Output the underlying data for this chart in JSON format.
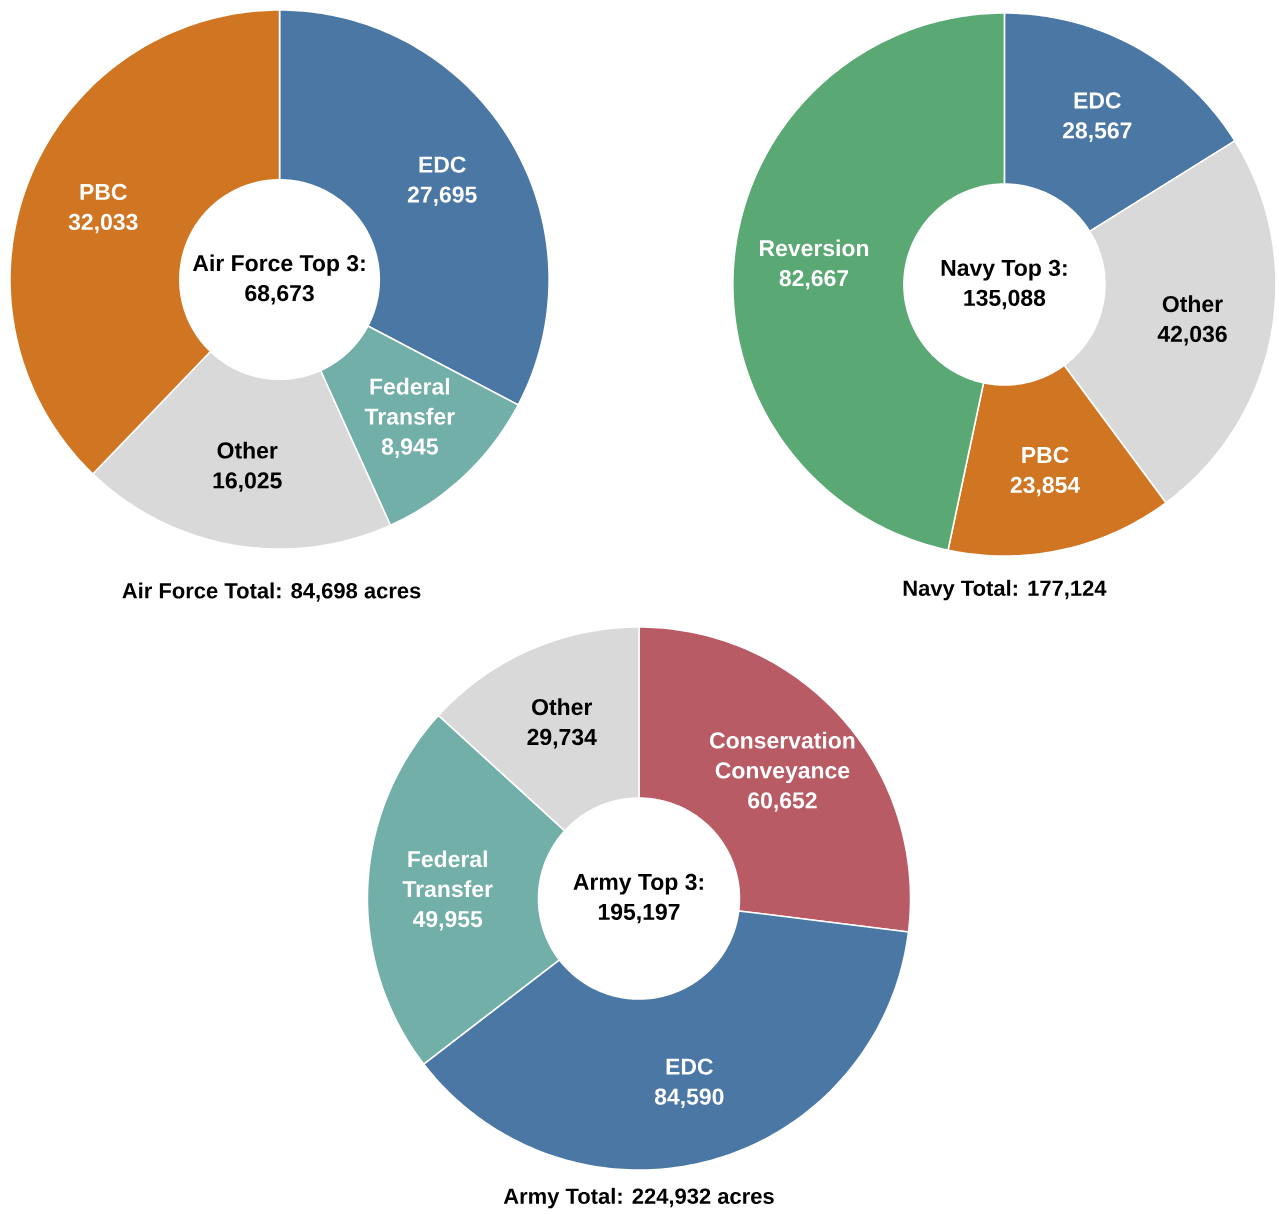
{
  "chart_data": [
    {
      "type": "donut",
      "title": "Air Force Total: 84,698 acres",
      "annotations": [
        "Air Force Top 3:",
        "68,673"
      ],
      "categories": [
        "EDC",
        "Federal Transfer",
        "Other",
        "PBC"
      ],
      "values": [
        27695,
        8945,
        16025,
        32033
      ],
      "value_labels": [
        "27,695",
        "8,945",
        "16,025",
        "32,033"
      ],
      "colors": [
        "#4b77a5",
        "#72afa9",
        "#d9d9d9",
        "#d07623"
      ]
    },
    {
      "type": "donut",
      "title": "Navy Total: 177,124",
      "annotations": [
        "Navy Top 3:",
        "135,088"
      ],
      "categories": [
        "EDC",
        "Other",
        "PBC",
        "Reversion"
      ],
      "values": [
        28567,
        42036,
        23854,
        82667
      ],
      "value_labels": [
        "28,567",
        "42,036",
        "23,854",
        "82,667"
      ],
      "colors": [
        "#4b77a5",
        "#d9d9d9",
        "#d07623",
        "#5aa873"
      ]
    },
    {
      "type": "donut",
      "title": "Army Total: 224,932 acres",
      "annotations": [
        "Army Top 3:",
        "195,197"
      ],
      "categories": [
        "Conservation Conveyance",
        "EDC",
        "Federal Transfer",
        "Other"
      ],
      "values": [
        60652,
        84590,
        49955,
        29734
      ],
      "value_labels": [
        "60,652",
        "84,590",
        "49,955",
        "29,734"
      ],
      "colors": [
        "#b85b64",
        "#4b77a5",
        "#72afa9",
        "#d9d9d9"
      ]
    }
  ]
}
